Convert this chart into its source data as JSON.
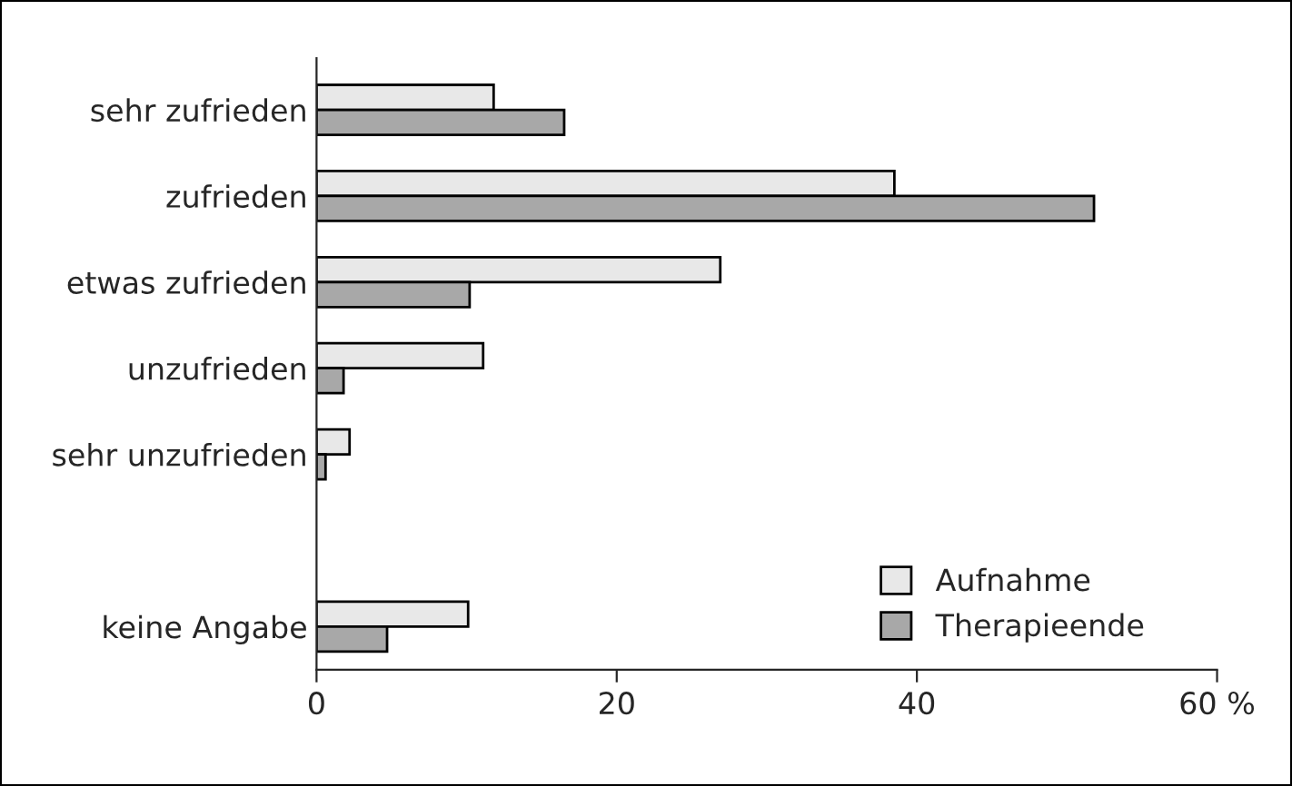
{
  "chart_data": {
    "type": "bar",
    "orientation": "horizontal",
    "categories": [
      "sehr zufrieden",
      "zufrieden",
      "etwas zufrieden",
      "unzufrieden",
      "sehr unzufrieden",
      null,
      "keine Angabe"
    ],
    "series": [
      {
        "name": "Aufnahme",
        "color": "#e8e8e8",
        "values": [
          11.8,
          38.5,
          26.9,
          11.1,
          2.2,
          null,
          10.1
        ]
      },
      {
        "name": "Therapieende",
        "color": "#a8a8a8",
        "values": [
          16.5,
          51.8,
          10.2,
          1.8,
          0.6,
          null,
          4.7
        ]
      }
    ],
    "xlim": [
      0,
      60
    ],
    "xticks": [
      0,
      20,
      40,
      {
        "value": 60,
        "label": "60 %"
      }
    ],
    "grid": false,
    "legend": "bottom right"
  }
}
